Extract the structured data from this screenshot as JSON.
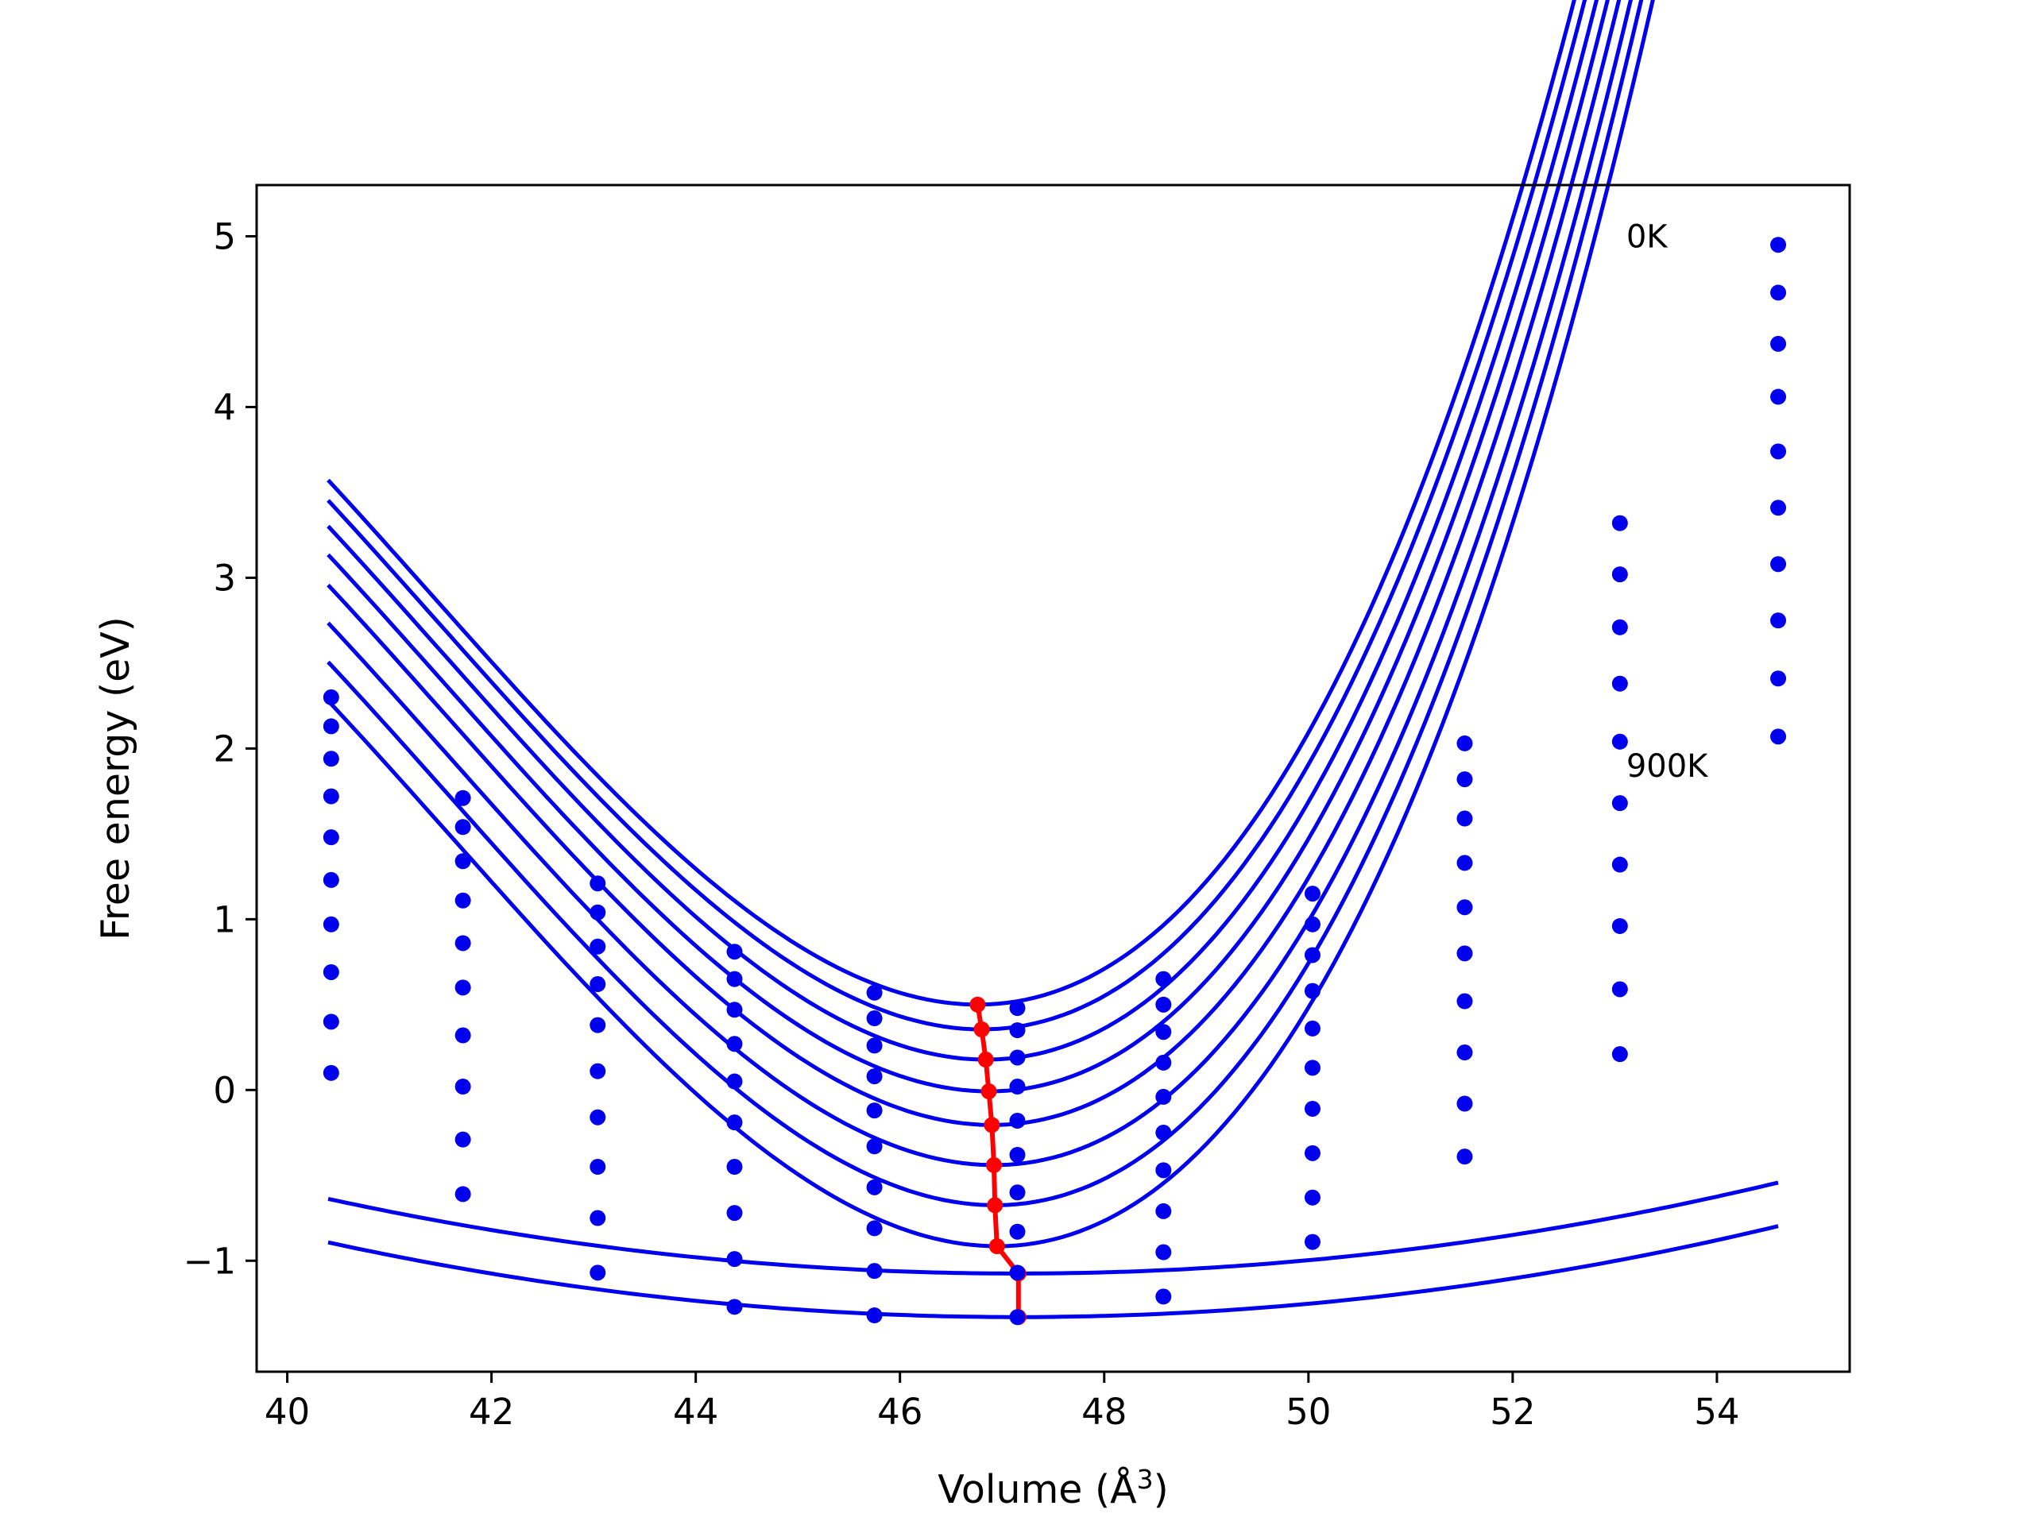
{
  "chart_data": {
    "type": "scatter",
    "title": "",
    "xlabel": "Volume (Å",
    "xlabel_superscript": "3",
    "xlabel_suffix": ")",
    "ylabel": "Free energy (eV)",
    "xlim": [
      39.7,
      55.3
    ],
    "ylim": [
      -1.65,
      5.3
    ],
    "xticks": [
      40,
      42,
      44,
      46,
      48,
      50,
      52,
      54
    ],
    "yticks": [
      -1,
      0,
      1,
      2,
      3,
      4,
      5
    ],
    "ytick_labels": [
      "−1",
      "0",
      "1",
      "2",
      "3",
      "4",
      "5"
    ],
    "grid": false,
    "legend": "none",
    "colors": {
      "data": "#0000ee",
      "fit": "#0000ee",
      "minimum": "#ff0000"
    },
    "volumes": [
      40.43,
      41.72,
      43.04,
      44.38,
      45.75,
      47.15,
      48.58,
      50.04,
      51.53,
      53.05,
      54.6
    ],
    "series": [
      {
        "energies": [
          2.3,
          1.71,
          1.21,
          0.81,
          0.57,
          0.48,
          0.65,
          1.15,
          2.03,
          3.32,
          4.95
        ]
      },
      {
        "energies": [
          2.13,
          1.54,
          1.04,
          0.65,
          0.42,
          0.35,
          0.5,
          0.97,
          1.82,
          3.02,
          4.67
        ]
      },
      {
        "energies": [
          1.94,
          1.34,
          0.84,
          0.47,
          0.26,
          0.19,
          0.34,
          0.79,
          1.59,
          2.71,
          4.37
        ]
      },
      {
        "energies": [
          1.72,
          1.11,
          0.62,
          0.27,
          0.08,
          0.02,
          0.16,
          0.58,
          1.33,
          2.38,
          4.06
        ]
      },
      {
        "energies": [
          1.48,
          0.86,
          0.38,
          0.05,
          -0.12,
          -0.18,
          -0.04,
          0.36,
          1.07,
          2.04,
          3.74
        ]
      },
      {
        "energies": [
          1.23,
          0.6,
          0.11,
          -0.19,
          -0.33,
          -0.38,
          -0.25,
          0.13,
          0.8,
          1.68,
          3.41
        ]
      },
      {
        "energies": [
          0.97,
          0.32,
          -0.16,
          -0.45,
          -0.57,
          -0.6,
          -0.47,
          -0.11,
          0.52,
          1.32,
          3.08
        ]
      },
      {
        "energies": [
          0.69,
          0.02,
          -0.45,
          -0.72,
          -0.81,
          -0.83,
          -0.71,
          -0.37,
          0.22,
          0.96,
          2.75
        ]
      },
      {
        "energies": [
          0.4,
          -0.29,
          -0.75,
          -0.99,
          -1.06,
          -1.07,
          -0.95,
          -0.63,
          -0.08,
          0.59,
          2.41
        ]
      },
      {
        "energies": [
          0.1,
          -0.61,
          -1.07,
          -1.27,
          -1.32,
          -1.33,
          -1.21,
          -0.89,
          -0.39,
          0.21,
          2.07
        ]
      }
    ],
    "fits": [
      {
        "e0": 0.5,
        "v0": 46.76,
        "b": 0.1262,
        "c": 0.0079
      },
      {
        "e0": 0.355,
        "v0": 46.8,
        "b": 0.1262,
        "c": 0.0079
      },
      {
        "e0": 0.178,
        "v0": 46.84,
        "b": 0.1262,
        "c": 0.0079
      },
      {
        "e0": -0.008,
        "v0": 46.87,
        "b": 0.1262,
        "c": 0.0079
      },
      {
        "e0": -0.205,
        "v0": 46.9,
        "b": 0.1262,
        "c": 0.0079
      },
      {
        "e0": -0.44,
        "v0": 46.92,
        "b": 0.1262,
        "c": 0.0079
      },
      {
        "e0": -0.675,
        "v0": 46.93,
        "b": 0.1262,
        "c": 0.0079
      },
      {
        "e0": -0.915,
        "v0": 46.95,
        "b": 0.1262,
        "c": 0.0079
      },
      {
        "e0": -1.075,
        "v0": 47.15,
        "b": 0.0096,
        "c": 0.0
      },
      {
        "e0": -1.33,
        "v0": 47.15,
        "b": 0.0096,
        "c": 0.0
      }
    ],
    "minima": [
      {
        "x": 46.76,
        "y": 0.5
      },
      {
        "x": 46.8,
        "y": 0.355
      },
      {
        "x": 46.84,
        "y": 0.178
      },
      {
        "x": 46.87,
        "y": -0.008
      },
      {
        "x": 46.9,
        "y": -0.205
      },
      {
        "x": 46.92,
        "y": -0.44
      },
      {
        "x": 46.93,
        "y": -0.675
      },
      {
        "x": 46.95,
        "y": -0.915
      },
      {
        "x": 47.16,
        "y": -1.075
      },
      {
        "x": 47.16,
        "y": -1.33
      }
    ],
    "annotations": [
      {
        "text": "0K",
        "x": 53.05,
        "y": 5.0
      },
      {
        "text": "900K",
        "x": 53.05,
        "y": 1.9
      }
    ]
  }
}
